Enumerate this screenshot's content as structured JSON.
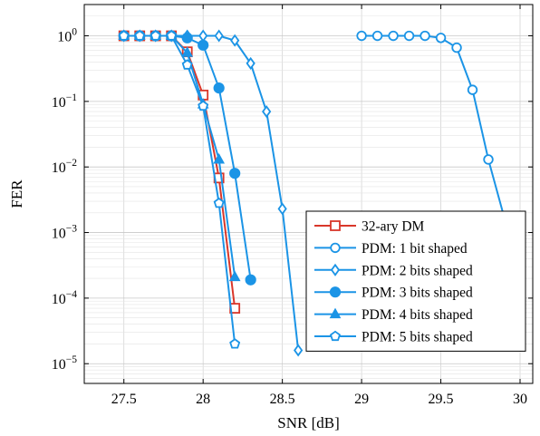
{
  "chart_data": {
    "type": "line",
    "xlabel": "SNR [dB]",
    "ylabel": "FER",
    "xlim": [
      27.25,
      30.08
    ],
    "ylim": [
      5e-06,
      3
    ],
    "yscale": "log",
    "xticks": [
      27.5,
      28,
      28.5,
      29,
      29.5,
      30
    ],
    "xtick_labels": [
      "27.5",
      "28",
      "28.5",
      "29",
      "29.5",
      "30"
    ],
    "yticks": [
      1e-05,
      0.0001,
      0.001,
      0.01,
      0.1,
      1
    ],
    "ytick_labels": [
      {
        "base": "10",
        "exp": "−5"
      },
      {
        "base": "10",
        "exp": "−4"
      },
      {
        "base": "10",
        "exp": "−3"
      },
      {
        "base": "10",
        "exp": "−2"
      },
      {
        "base": "10",
        "exp": "−1"
      },
      {
        "base": "10",
        "exp": "0"
      }
    ],
    "grid": true,
    "legend_position": "bottom-right",
    "series": [
      {
        "name": "32-ary DM",
        "color": "#d9372a",
        "marker": "square-open",
        "points": [
          [
            27.5,
            1
          ],
          [
            27.6,
            1
          ],
          [
            27.7,
            1
          ],
          [
            27.8,
            1
          ],
          [
            27.9,
            0.57
          ],
          [
            28.0,
            0.125
          ],
          [
            28.1,
            0.0068
          ],
          [
            28.2,
            7e-05
          ]
        ]
      },
      {
        "name": "PDM: 1 bit shaped",
        "color": "#1b94e6",
        "marker": "circle-open",
        "points": [
          [
            29.0,
            1
          ],
          [
            29.1,
            1
          ],
          [
            29.2,
            1
          ],
          [
            29.3,
            1
          ],
          [
            29.4,
            1
          ],
          [
            29.5,
            0.93
          ],
          [
            29.6,
            0.66
          ],
          [
            29.7,
            0.15
          ],
          [
            29.8,
            0.013
          ],
          [
            29.9,
            0.0017
          ]
        ]
      },
      {
        "name": "PDM: 2 bits shaped",
        "color": "#1b94e6",
        "marker": "diamond-open",
        "points": [
          [
            27.5,
            1
          ],
          [
            27.6,
            1
          ],
          [
            27.7,
            1
          ],
          [
            27.8,
            1
          ],
          [
            27.9,
            1
          ],
          [
            28.0,
            1
          ],
          [
            28.1,
            1
          ],
          [
            28.2,
            0.85
          ],
          [
            28.3,
            0.38
          ],
          [
            28.4,
            0.07
          ],
          [
            28.5,
            0.0023
          ],
          [
            28.6,
            1.6e-05
          ]
        ]
      },
      {
        "name": "PDM: 3 bits shaped",
        "color": "#1b94e6",
        "marker": "circle-filled",
        "points": [
          [
            27.5,
            1
          ],
          [
            27.6,
            1
          ],
          [
            27.7,
            1
          ],
          [
            27.8,
            1
          ],
          [
            27.9,
            0.93
          ],
          [
            28.0,
            0.72
          ],
          [
            28.1,
            0.16
          ],
          [
            28.2,
            0.008
          ],
          [
            28.3,
            0.00019
          ]
        ]
      },
      {
        "name": "PDM: 4 bits shaped",
        "color": "#1b94e6",
        "marker": "triangle-filled",
        "points": [
          [
            27.5,
            1
          ],
          [
            27.6,
            1
          ],
          [
            27.7,
            1
          ],
          [
            27.8,
            1
          ],
          [
            27.9,
            0.55
          ],
          [
            28.0,
            0.09
          ],
          [
            28.1,
            0.013
          ],
          [
            28.2,
            0.00021
          ]
        ]
      },
      {
        "name": "PDM: 5 bits shaped",
        "color": "#1b94e6",
        "marker": "pentagon-open",
        "points": [
          [
            27.5,
            1
          ],
          [
            27.6,
            1
          ],
          [
            27.7,
            1
          ],
          [
            27.8,
            1
          ],
          [
            27.9,
            0.36
          ],
          [
            28.0,
            0.085
          ],
          [
            28.1,
            0.0028
          ],
          [
            28.2,
            2e-05
          ]
        ]
      }
    ]
  }
}
